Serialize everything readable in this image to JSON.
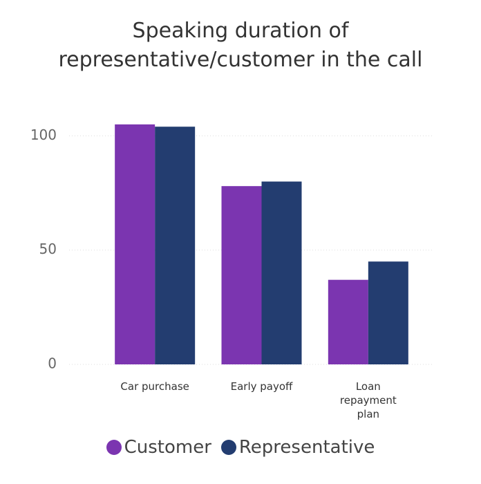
{
  "chart_data": {
    "type": "bar",
    "title": "Speaking duration of representative/customer in the call",
    "categories": [
      "Car purchase",
      "Early payoff",
      "Loan repayment plan"
    ],
    "series": [
      {
        "name": "Customer",
        "color": "#7b35b0",
        "values": [
          105,
          78,
          37
        ]
      },
      {
        "name": "Representative",
        "color": "#233d70",
        "values": [
          104,
          80,
          45
        ]
      }
    ],
    "ylim": [
      0,
      108
    ],
    "yticks": [
      0,
      50,
      100
    ],
    "grid": true
  }
}
